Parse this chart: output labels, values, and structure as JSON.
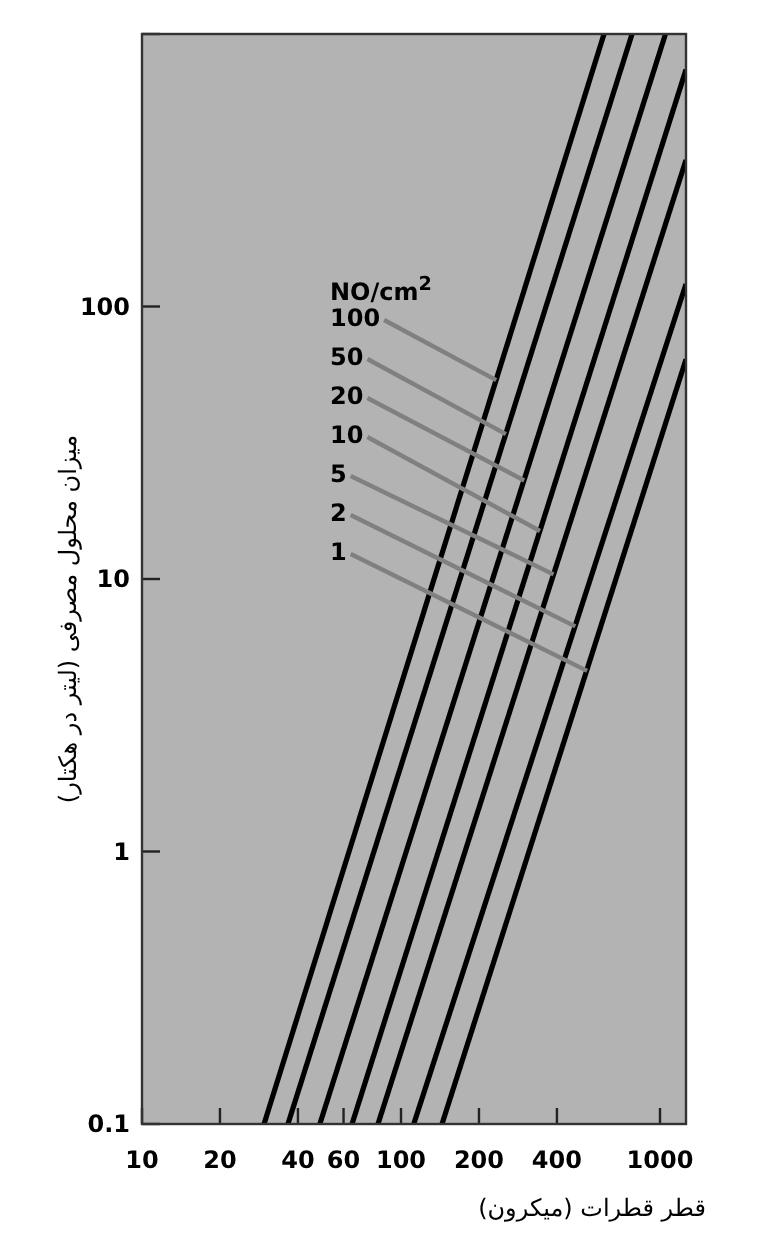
{
  "chart_data": {
    "type": "line",
    "xlabel": "قطر قطرات (میکرون)",
    "ylabel": "میزان محلول مصرفی (لیتر در هکتار)",
    "log": "xy",
    "xlim": [
      10,
      1260
    ],
    "ylim": [
      0.1,
      1000
    ],
    "xticks": [
      10,
      20,
      40,
      60,
      100,
      200,
      400,
      1000
    ],
    "yticks": [
      0.1,
      1,
      10,
      100,
      {
        "value": 1000,
        "label": null
      }
    ],
    "series": [
      {
        "color": "#000000",
        "x": [
          29.6,
          608
        ],
        "values": [
          0.1,
          1000
        ]
      },
      {
        "color": "#000000",
        "x": [
          36.6,
          780
        ],
        "values": [
          0.1,
          1000
        ]
      },
      {
        "color": "#000000",
        "x": [
          48.6,
          1050
        ],
        "values": [
          0.1,
          1000
        ]
      },
      {
        "color": "#000000",
        "x": [
          64.7,
          1260
        ],
        "values": [
          0.1,
          740
        ]
      },
      {
        "color": "#000000",
        "x": [
          81.5,
          1260
        ],
        "values": [
          0.1,
          345
        ]
      },
      {
        "color": "#000000",
        "x": [
          112,
          1260
        ],
        "values": [
          0.1,
          121
        ]
      },
      {
        "color": "#000000",
        "x": [
          144,
          1260
        ],
        "values": [
          0.1,
          64
        ]
      }
    ],
    "annotations": [
      "NO/cm$^{2}$",
      {
        "text": "100",
        "x": 233,
        "y": 53.7
      },
      {
        "text": "50",
        "x": 254,
        "y": 34
      },
      {
        "text": "20",
        "x": 299,
        "y": 23
      },
      {
        "text": "10",
        "x": 344,
        "y": 15
      },
      {
        "text": "5",
        "x": 388,
        "y": 10.4
      },
      {
        "text": "2",
        "x": 471,
        "y": 6.7
      },
      {
        "text": "1",
        "x": 523,
        "y": 4.6
      }
    ]
  }
}
